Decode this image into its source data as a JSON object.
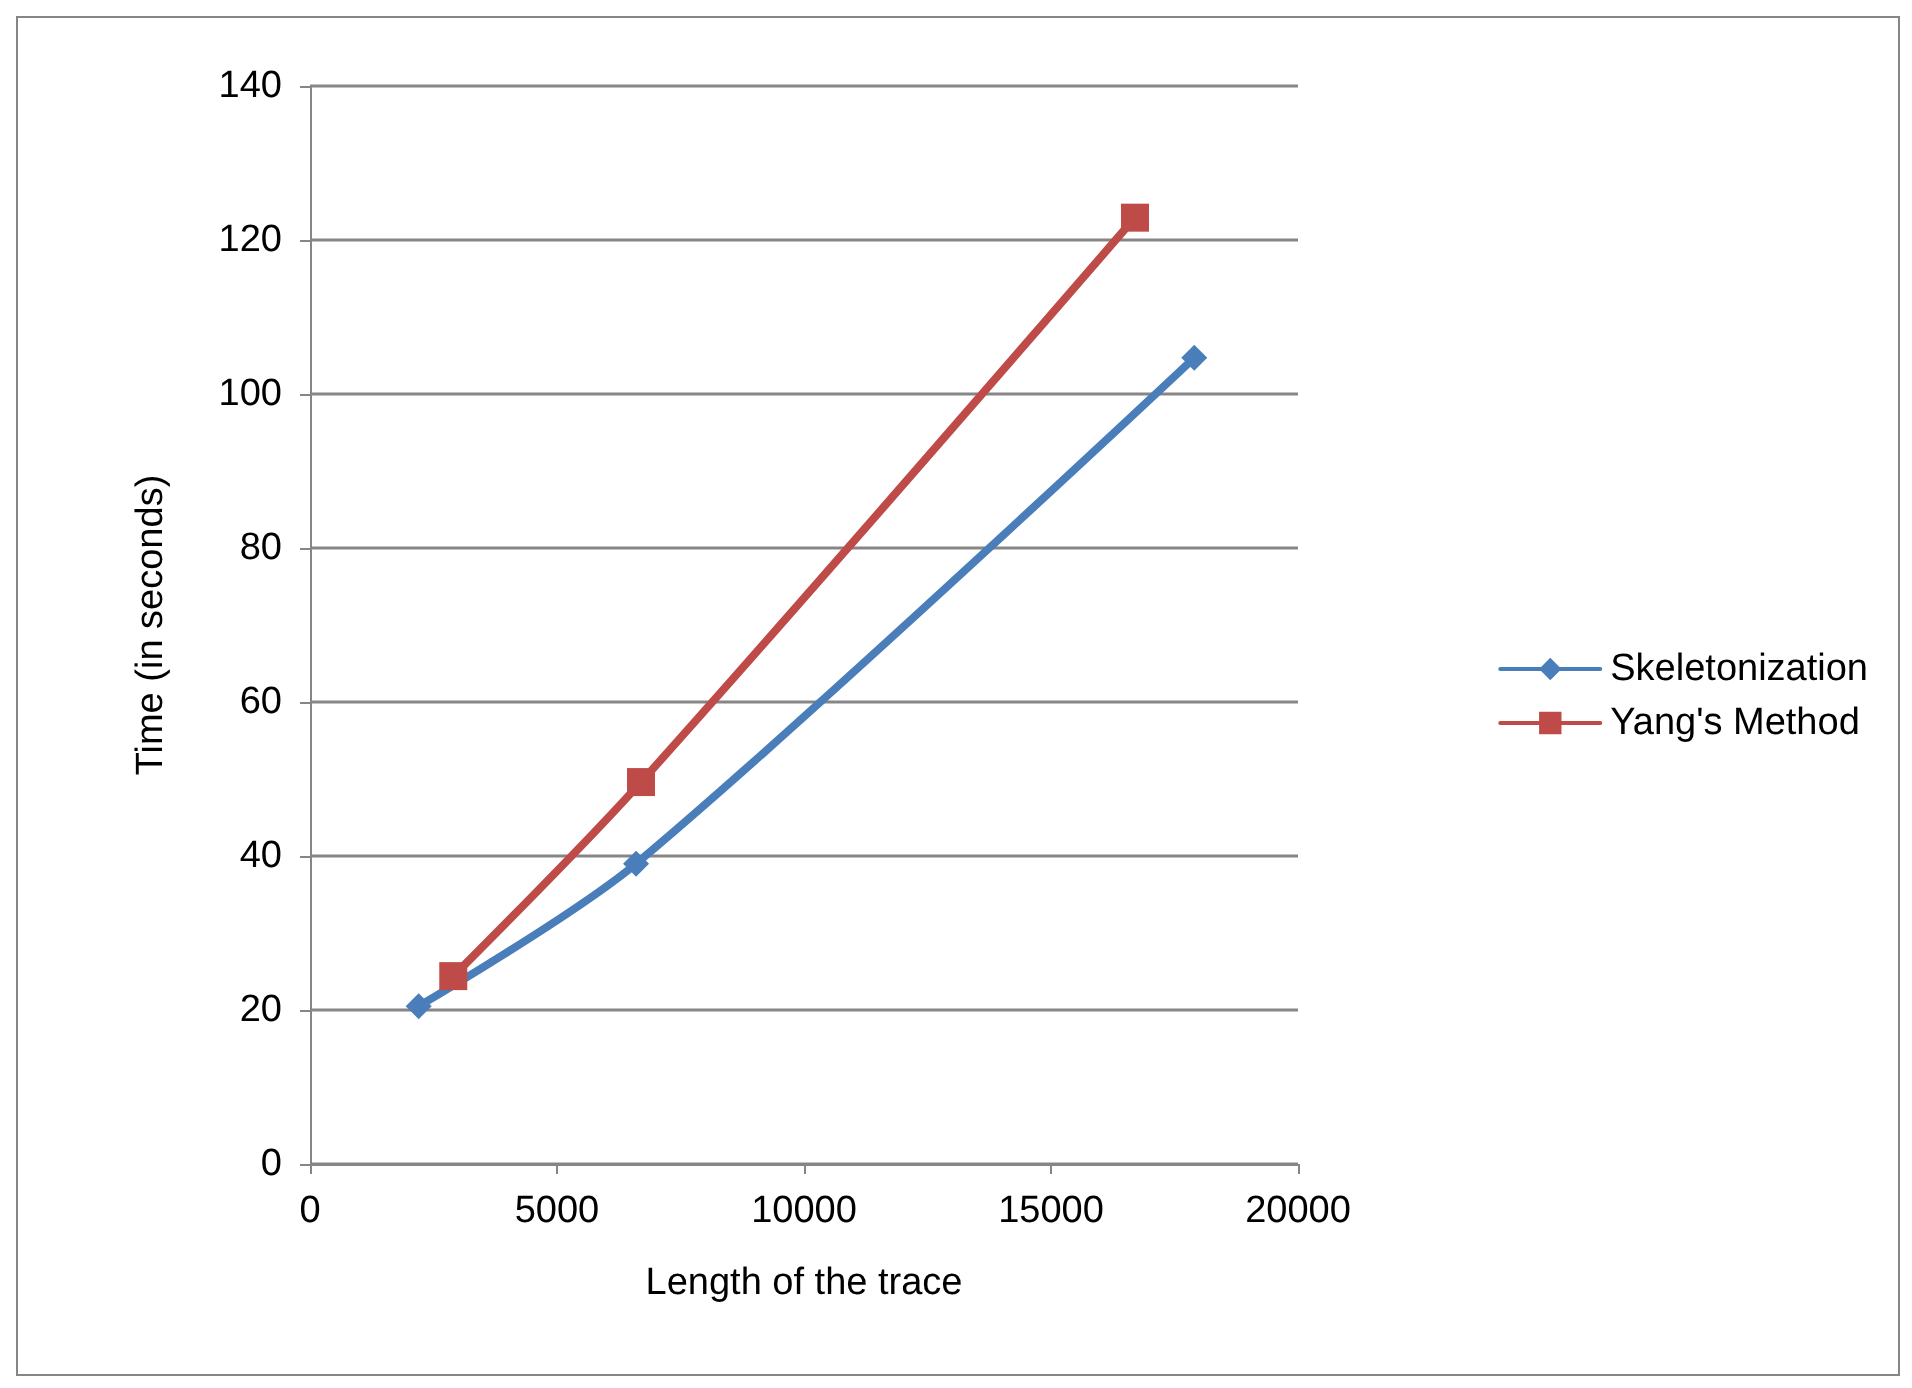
{
  "chart_data": {
    "type": "line",
    "xlabel": "Length of the trace",
    "ylabel": "Time (in seconds)",
    "xlim": [
      0,
      20000
    ],
    "xticks": [
      0,
      5000,
      10000,
      15000,
      20000
    ],
    "ylim": [
      0,
      140
    ],
    "yticks": [
      0,
      20,
      40,
      60,
      80,
      100,
      120,
      140
    ],
    "grid": "y",
    "legend": "right",
    "line_style": "solid",
    "series": [
      {
        "name": "Skeletonization",
        "color": "#4a7ebb",
        "marker": "diamond",
        "x": [
          2200,
          6600,
          17900
        ],
        "values": [
          20.5,
          39,
          104.7
        ]
      },
      {
        "name": "Yang's Method",
        "color": "#be4b48",
        "marker": "square",
        "x": [
          2900,
          6700,
          16700
        ],
        "values": [
          24.4,
          49.6,
          122.9
        ]
      }
    ]
  }
}
